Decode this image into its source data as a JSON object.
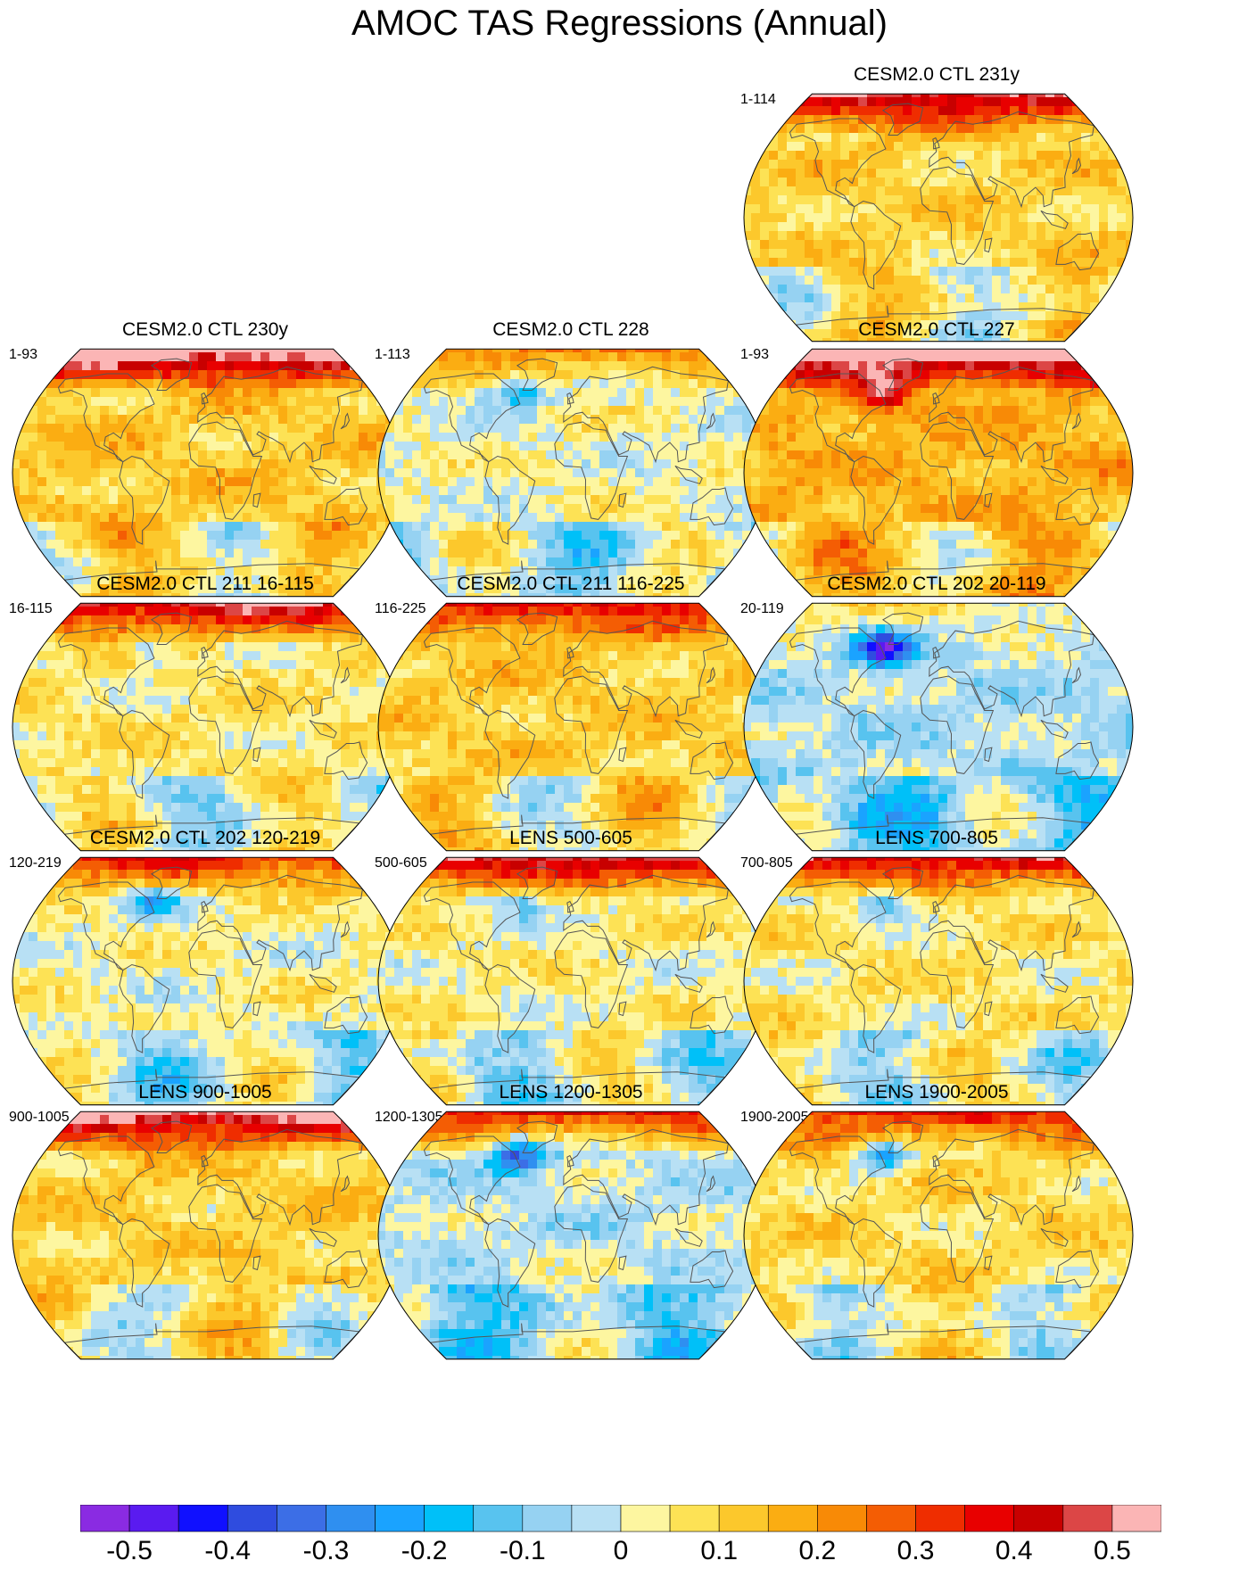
{
  "title": "AMOC TAS Regressions (Annual)",
  "panels": [
    {
      "id": "p231",
      "title": "CESM2.0 CTL 231y",
      "period": "1-114",
      "col": 2,
      "row": 0,
      "seed": 11,
      "bias": 0.1,
      "arctic": 0.42,
      "labrador": 0.05
    },
    {
      "id": "p230",
      "title": "CESM2.0 CTL 230y",
      "period": "1-93",
      "col": 0,
      "row": 1,
      "seed": 23,
      "bias": 0.12,
      "arctic": 0.55,
      "labrador": -0.05
    },
    {
      "id": "p228",
      "title": "CESM2.0 CTL 228",
      "period": "1-113",
      "col": 1,
      "row": 1,
      "seed": 37,
      "bias": 0.02,
      "arctic": 0.22,
      "labrador": -0.18
    },
    {
      "id": "p227",
      "title": "CESM2.0 CTL 227",
      "period": "1-93",
      "col": 2,
      "row": 1,
      "seed": 41,
      "bias": 0.16,
      "arctic": 0.52,
      "labrador": 0.3
    },
    {
      "id": "p211a",
      "title": "CESM2.0 CTL 211 16-115",
      "period": "16-115",
      "col": 0,
      "row": 2,
      "seed": 53,
      "bias": 0.06,
      "arctic": 0.46,
      "labrador": -0.12
    },
    {
      "id": "p211b",
      "title": "CESM2.0 CTL 211 116-225",
      "period": "116-225",
      "col": 1,
      "row": 2,
      "seed": 67,
      "bias": 0.11,
      "arctic": 0.3,
      "labrador": 0.05
    },
    {
      "id": "p202a",
      "title": "CESM2.0 CTL 202 20-119",
      "period": "20-119",
      "col": 2,
      "row": 2,
      "seed": 79,
      "bias": -0.04,
      "arctic": 0.12,
      "labrador": -0.42
    },
    {
      "id": "p202b",
      "title": "CESM2.0 CTL 202 120-219",
      "period": "120-219",
      "col": 0,
      "row": 3,
      "seed": 83,
      "bias": 0.03,
      "arctic": 0.36,
      "labrador": -0.2
    },
    {
      "id": "l500",
      "title": "LENS 500-605",
      "period": "500-605",
      "col": 1,
      "row": 3,
      "seed": 97,
      "bias": 0.04,
      "arctic": 0.48,
      "labrador": -0.15
    },
    {
      "id": "l700",
      "title": "LENS 700-805",
      "period": "700-805",
      "col": 2,
      "row": 3,
      "seed": 101,
      "bias": 0.06,
      "arctic": 0.4,
      "labrador": -0.22
    },
    {
      "id": "l900",
      "title": "LENS 900-1005",
      "period": "900-1005",
      "col": 0,
      "row": 4,
      "seed": 113,
      "bias": 0.1,
      "arctic": 0.5,
      "labrador": 0.05
    },
    {
      "id": "l1200",
      "title": "LENS 1200-1305",
      "period": "1200-1305",
      "col": 1,
      "row": 4,
      "seed": 127,
      "bias": -0.02,
      "arctic": 0.42,
      "labrador": -0.35
    },
    {
      "id": "l1900",
      "title": "LENS 1900-2005",
      "period": "1900-2005",
      "col": 2,
      "row": 4,
      "seed": 131,
      "bias": 0.08,
      "arctic": 0.3,
      "labrador": -0.28
    }
  ],
  "colorbar": {
    "colors": [
      "#8a2be2",
      "#5a1bf0",
      "#1010ff",
      "#2f4cdf",
      "#3c6ee6",
      "#2f8ff0",
      "#1aa3ff",
      "#00c0f8",
      "#58c3ef",
      "#96d2f2",
      "#b8e0f4",
      "#fdf6a0",
      "#fde255",
      "#fcc82c",
      "#fbad12",
      "#f88a06",
      "#f45d04",
      "#ef2d00",
      "#e80000",
      "#c80000",
      "#dc4646",
      "#fbb5b5"
    ],
    "tick_labels": [
      "-0.5",
      "-0.4",
      "-0.3",
      "-0.2",
      "-0.1",
      "0",
      "0.1",
      "0.2",
      "0.3",
      "0.4",
      "0.5"
    ]
  }
}
